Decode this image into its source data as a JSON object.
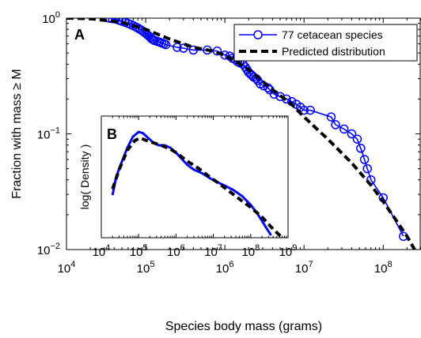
{
  "chart_data": [
    {
      "panel_label": "A",
      "type": "line",
      "xscale": "log",
      "yscale": "log",
      "xlim": [
        10000,
        300000000
      ],
      "ylim": [
        0.01,
        1
      ],
      "xlabel": "Species body mass (grams)",
      "ylabel": "Fraction with mass ≥ M",
      "x_ticks": [
        {
          "v": 10000,
          "base": "10",
          "exp": "4"
        },
        {
          "v": 100000,
          "base": "10",
          "exp": "5"
        },
        {
          "v": 1000000,
          "base": "10",
          "exp": "6"
        },
        {
          "v": 10000000,
          "base": "10",
          "exp": "7"
        },
        {
          "v": 100000000,
          "base": "10",
          "exp": "8"
        }
      ],
      "y_ticks": [
        {
          "v": 0.01,
          "base": "10",
          "exp": "−2"
        },
        {
          "v": 0.1,
          "base": "10",
          "exp": "−1"
        },
        {
          "v": 1,
          "base": "10",
          "exp": "0"
        }
      ],
      "legend_position": "top-right",
      "series": [
        {
          "name": "77 cetacean species",
          "style": "line-with-circles",
          "color": "#0000ff",
          "x": [
            35000,
            38000,
            42000,
            46000,
            50000,
            55000,
            60000,
            65000,
            70000,
            75000,
            80000,
            85000,
            90000,
            95000,
            100000,
            105000,
            110000,
            115000,
            120000,
            125000,
            130000,
            140000,
            150000,
            160000,
            170000,
            180000,
            250000,
            300000,
            400000,
            600000,
            800000,
            1000000,
            1150000,
            1250000,
            1350000,
            1450000,
            1550000,
            1700000,
            1800000,
            1900000,
            2000000,
            2100000,
            2200000,
            2300000,
            2500000,
            2600000,
            2800000,
            3100000,
            3500000,
            3700000,
            4200000,
            5000000,
            6000000,
            7000000,
            8000000,
            9000000,
            10000000,
            12000000,
            22000000,
            25000000,
            32000000,
            40000000,
            47000000,
            52000000,
            58000000,
            63000000,
            70000000,
            100000000,
            180000000
          ],
          "y": [
            1.0,
            0.99,
            0.98,
            0.96,
            0.94,
            0.92,
            0.9,
            0.88,
            0.86,
            0.84,
            0.82,
            0.8,
            0.78,
            0.76,
            0.74,
            0.72,
            0.7,
            0.68,
            0.66,
            0.65,
            0.64,
            0.63,
            0.62,
            0.61,
            0.6,
            0.59,
            0.56,
            0.55,
            0.53,
            0.53,
            0.52,
            0.48,
            0.47,
            0.45,
            0.44,
            0.42,
            0.41,
            0.4,
            0.38,
            0.36,
            0.34,
            0.33,
            0.32,
            0.31,
            0.3,
            0.29,
            0.27,
            0.26,
            0.25,
            0.24,
            0.22,
            0.21,
            0.2,
            0.19,
            0.18,
            0.17,
            0.16,
            0.16,
            0.14,
            0.12,
            0.11,
            0.1,
            0.09,
            0.075,
            0.06,
            0.05,
            0.04,
            0.028,
            0.013
          ]
        },
        {
          "name": "Predicted distribution",
          "style": "dashed",
          "color": "#000000",
          "x": [
            10000,
            20000,
            50000,
            100000,
            200000,
            400000,
            700000,
            1000000,
            2000000,
            4000000,
            7000000,
            10000000,
            20000000,
            40000000,
            70000000,
            100000000,
            200000000,
            300000000
          ],
          "y": [
            1.0,
            0.99,
            0.92,
            0.8,
            0.66,
            0.56,
            0.52,
            0.48,
            0.36,
            0.24,
            0.18,
            0.14,
            0.09,
            0.056,
            0.036,
            0.026,
            0.013,
            0.008
          ]
        }
      ]
    },
    {
      "panel_label": "B",
      "type": "line",
      "inset": true,
      "xscale": "log",
      "xlim": [
        10000,
        1000000000
      ],
      "ylim": [
        0,
        1
      ],
      "y_scale_note": "relative log density",
      "ylabel": "log( Density )",
      "x_ticks": [
        {
          "v": 10000,
          "base": "10",
          "exp": "4"
        },
        {
          "v": 100000,
          "base": "10",
          "exp": "5"
        },
        {
          "v": 1000000,
          "base": "10",
          "exp": "6"
        },
        {
          "v": 10000000,
          "base": "10",
          "exp": "7"
        },
        {
          "v": 100000000,
          "base": "10",
          "exp": "8"
        },
        {
          "v": 1000000000,
          "base": "10",
          "exp": "9"
        }
      ],
      "series": [
        {
          "style": "solid",
          "color": "#0000ff",
          "x": [
            20000,
            25000,
            35000,
            50000,
            70000,
            100000,
            130000,
            180000,
            250000,
            350000,
            500000,
            700000,
            1000000,
            1500000,
            2000000,
            3000000,
            5000000,
            8000000,
            12000000,
            20000000,
            35000000,
            60000000,
            100000000,
            150000000,
            250000000,
            350000000
          ],
          "y": [
            0.35,
            0.5,
            0.62,
            0.74,
            0.83,
            0.87,
            0.86,
            0.82,
            0.78,
            0.76,
            0.76,
            0.74,
            0.7,
            0.64,
            0.6,
            0.56,
            0.53,
            0.49,
            0.46,
            0.43,
            0.39,
            0.34,
            0.27,
            0.2,
            0.09,
            0.02
          ]
        },
        {
          "style": "dashed",
          "color": "#000000",
          "x": [
            20000,
            30000,
            50000,
            80000,
            110000,
            160000,
            250000,
            400000,
            700000,
            1000000,
            2000000,
            4000000,
            8000000,
            15000000,
            30000000,
            60000000,
            100000000,
            200000000,
            400000000,
            700000000
          ],
          "y": [
            0.4,
            0.56,
            0.72,
            0.8,
            0.82,
            0.8,
            0.78,
            0.76,
            0.73,
            0.7,
            0.63,
            0.57,
            0.5,
            0.44,
            0.37,
            0.3,
            0.25,
            0.17,
            0.07,
            0.0
          ]
        }
      ]
    }
  ]
}
